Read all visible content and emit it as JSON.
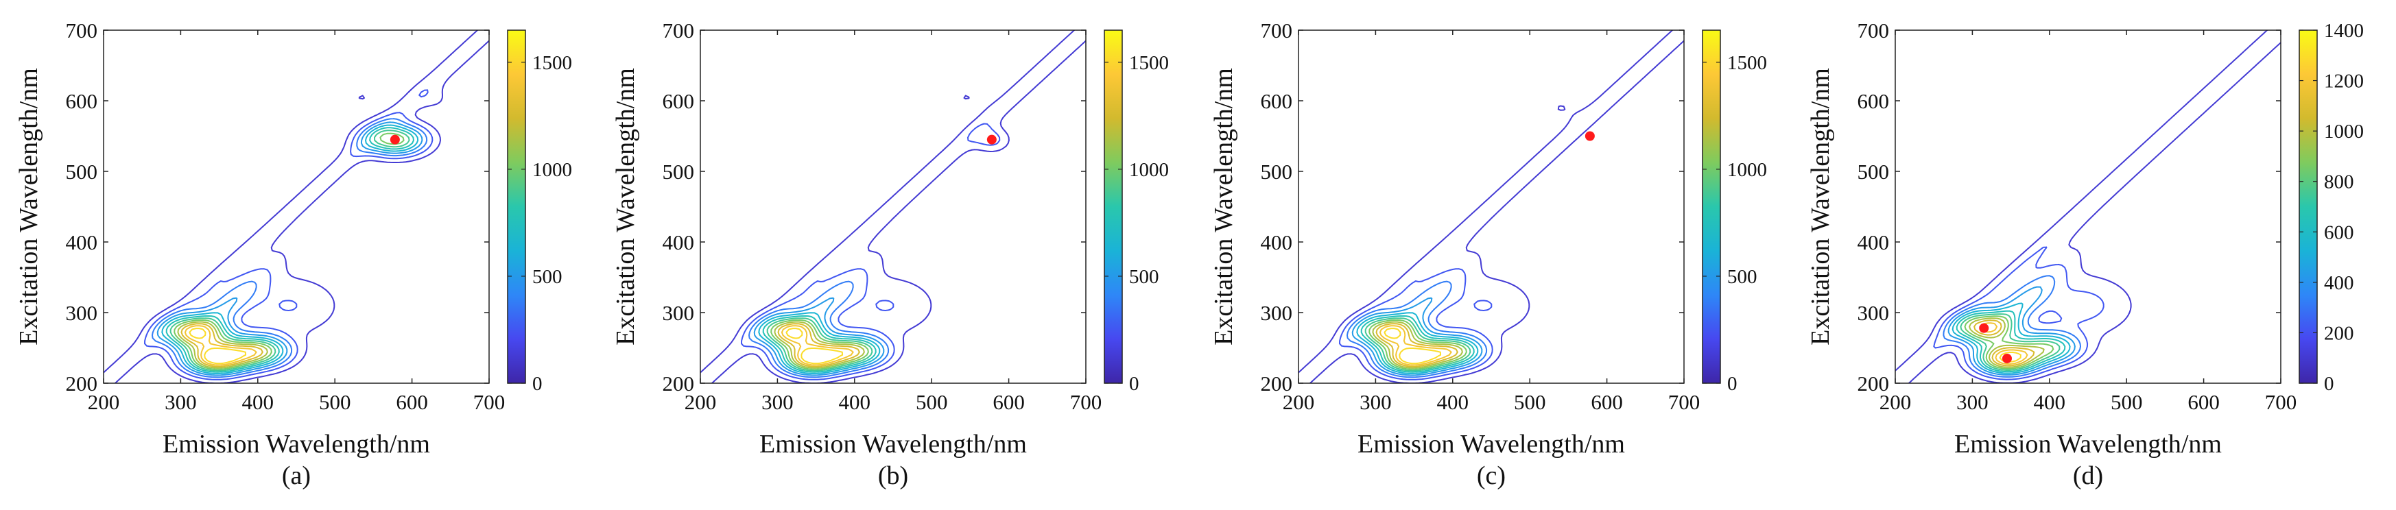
{
  "figure": {
    "colorbar_colors": [
      "#3e26a8",
      "#4748f0",
      "#2e87f7",
      "#1ab3d7",
      "#2ac7ac",
      "#7fcb5e",
      "#d2ba2e",
      "#fdc836",
      "#f9fb15"
    ],
    "marker_color": "#ff1a1a"
  },
  "chart_data": [
    {
      "type": "contour",
      "label": "(a)",
      "xlabel": "Emission Wavelength/nm",
      "ylabel": "Excitation Wavelength/nm",
      "xlim": [
        200,
        700
      ],
      "ylim": [
        200,
        700
      ],
      "xticks": [
        200,
        300,
        400,
        500,
        600,
        700
      ],
      "yticks": [
        200,
        300,
        400,
        500,
        600,
        700
      ],
      "colorbar": {
        "min": 0,
        "max": 1650,
        "ticks": [
          0,
          500,
          1000,
          1500
        ]
      },
      "peaks": [
        {
          "ex": 272,
          "em": 320,
          "intensity": 1450
        },
        {
          "ex": 235,
          "em": 345,
          "intensity": 1550
        },
        {
          "ex": 245,
          "em": 400,
          "intensity": 1150
        },
        {
          "ex": 545,
          "em": 578,
          "intensity": 1100
        },
        {
          "ex": 605,
          "em": 535,
          "intensity": 130
        },
        {
          "ex": 602,
          "em": 630,
          "intensity": 130
        }
      ],
      "markers": [
        {
          "em": 578,
          "ex": 545
        }
      ]
    },
    {
      "type": "contour",
      "label": "(b)",
      "xlabel": "Emission Wavelength/nm",
      "ylabel": "Excitation Wavelength/nm",
      "xlim": [
        200,
        700
      ],
      "ylim": [
        200,
        700
      ],
      "xticks": [
        200,
        300,
        400,
        500,
        600,
        700
      ],
      "yticks": [
        200,
        300,
        400,
        500,
        600,
        700
      ],
      "colorbar": {
        "min": 0,
        "max": 1650,
        "ticks": [
          0,
          500,
          1000,
          1500
        ]
      },
      "peaks": [
        {
          "ex": 272,
          "em": 320,
          "intensity": 1450
        },
        {
          "ex": 235,
          "em": 345,
          "intensity": 1550
        },
        {
          "ex": 245,
          "em": 400,
          "intensity": 1150
        },
        {
          "ex": 545,
          "em": 578,
          "intensity": 300
        },
        {
          "ex": 605,
          "em": 545,
          "intensity": 130
        }
      ],
      "markers": [
        {
          "em": 578,
          "ex": 545
        }
      ]
    },
    {
      "type": "contour",
      "label": "(c)",
      "xlabel": "Emission Wavelength/nm",
      "ylabel": "Excitation Wavelength/nm",
      "xlim": [
        200,
        700
      ],
      "ylim": [
        200,
        700
      ],
      "xticks": [
        200,
        300,
        400,
        500,
        600,
        700
      ],
      "yticks": [
        200,
        300,
        400,
        500,
        600,
        700
      ],
      "colorbar": {
        "min": 0,
        "max": 1650,
        "ticks": [
          0,
          500,
          1000,
          1500
        ]
      },
      "peaks": [
        {
          "ex": 272,
          "em": 320,
          "intensity": 1450
        },
        {
          "ex": 235,
          "em": 345,
          "intensity": 1550
        },
        {
          "ex": 245,
          "em": 400,
          "intensity": 1150
        },
        {
          "ex": 590,
          "em": 540,
          "intensity": 130
        }
      ],
      "markers": [
        {
          "em": 578,
          "ex": 550
        }
      ]
    },
    {
      "type": "contour",
      "label": "(d)",
      "xlabel": "Emission Wavelength/nm",
      "ylabel": "Excitation Wavelength/nm",
      "xlim": [
        200,
        700
      ],
      "ylim": [
        200,
        700
      ],
      "xticks": [
        200,
        300,
        400,
        500,
        600,
        700
      ],
      "yticks": [
        200,
        300,
        400,
        500,
        600,
        700
      ],
      "colorbar": {
        "min": 0,
        "max": 1400,
        "ticks": [
          0,
          200,
          400,
          600,
          800,
          1000,
          1200,
          1400
        ]
      },
      "peaks": [
        {
          "ex": 278,
          "em": 318,
          "intensity": 1100
        },
        {
          "ex": 235,
          "em": 345,
          "intensity": 1300
        },
        {
          "ex": 250,
          "em": 400,
          "intensity": 750
        }
      ],
      "markers": [
        {
          "em": 315,
          "ex": 278
        },
        {
          "em": 345,
          "ex": 235
        }
      ]
    }
  ]
}
